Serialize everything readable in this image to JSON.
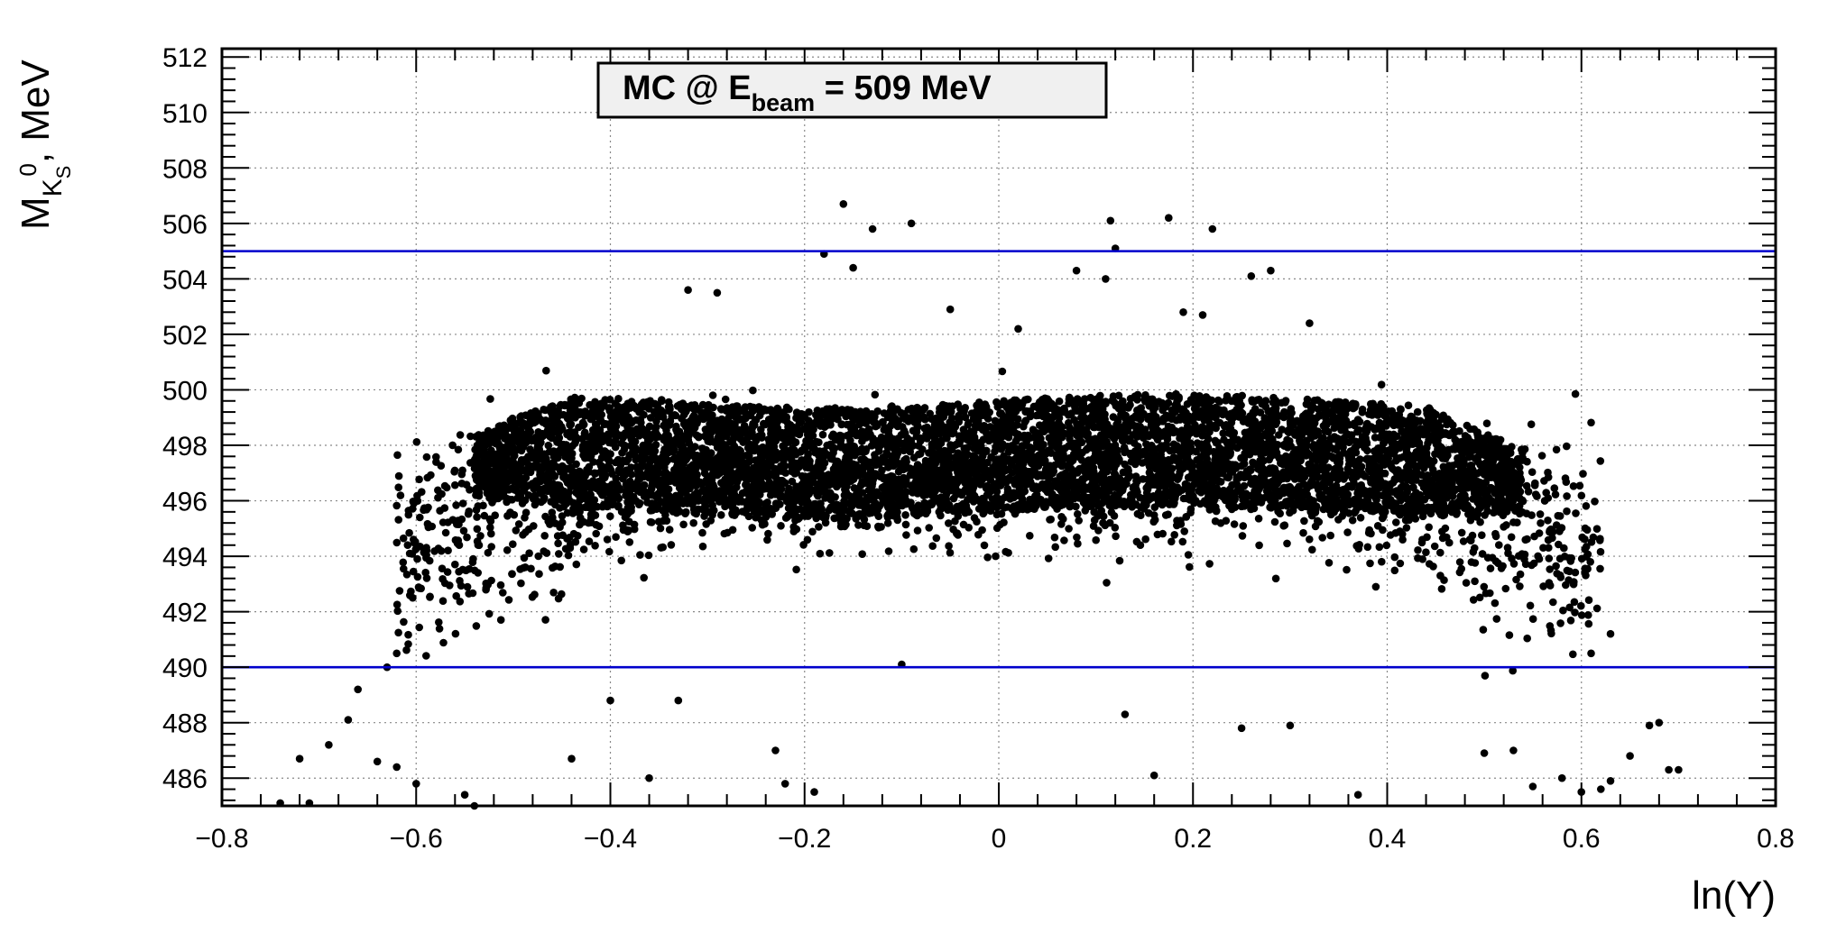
{
  "chart_data": {
    "type": "scatter",
    "title": "",
    "legend_box": {
      "prefix": "MC @ E",
      "subscript": "beam",
      "suffix": " = 509 MeV"
    },
    "xlabel": "ln(Y)",
    "ylabel": {
      "base": "M",
      "sub": "K",
      "subsub": "S",
      "sup": "0",
      "suffix": ", MeV"
    },
    "xlim": [
      -0.8,
      0.8
    ],
    "ylim": [
      485,
      512.3
    ],
    "x_ticks": [
      -0.8,
      -0.6,
      -0.4,
      -0.2,
      0,
      0.2,
      0.4,
      0.6,
      0.8
    ],
    "x_tick_labels": [
      "−0.8",
      "−0.6",
      "−0.4",
      "−0.2",
      "0",
      "0.2",
      "0.4",
      "0.6",
      "0.8"
    ],
    "y_ticks": [
      486,
      488,
      490,
      492,
      494,
      496,
      498,
      500,
      502,
      504,
      506,
      508,
      510,
      512
    ],
    "y_tick_labels": [
      "486",
      "488",
      "490",
      "492",
      "494",
      "496",
      "498",
      "500",
      "502",
      "504",
      "506",
      "508",
      "510",
      "512"
    ],
    "grid": true,
    "marker_color": "#000000",
    "cut_line_color": "#0000cc",
    "cut_lines": [
      490,
      505
    ],
    "band": {
      "x_range": [
        -0.54,
        0.54
      ],
      "center": 497.6,
      "half_width": 2.0,
      "n_points": 5200
    },
    "halo_points": 1900,
    "outlier_points": [
      [
        -0.16,
        506.7
      ],
      [
        -0.09,
        506.0
      ],
      [
        0.115,
        506.1
      ],
      [
        0.175,
        506.2
      ],
      [
        0.22,
        505.8
      ],
      [
        -0.13,
        505.8
      ],
      [
        0.12,
        505.1
      ],
      [
        -0.18,
        504.9
      ],
      [
        -0.15,
        504.4
      ],
      [
        0.11,
        504.0
      ],
      [
        0.08,
        504.3
      ],
      [
        0.26,
        504.1
      ],
      [
        0.28,
        504.3
      ],
      [
        -0.32,
        503.6
      ],
      [
        -0.29,
        503.5
      ],
      [
        0.32,
        502.4
      ],
      [
        0.19,
        502.8
      ],
      [
        0.21,
        502.7
      ],
      [
        -0.05,
        502.9
      ],
      [
        0.02,
        502.2
      ],
      [
        -0.74,
        485.1
      ],
      [
        -0.71,
        485.1
      ],
      [
        -0.72,
        486.7
      ],
      [
        -0.69,
        487.2
      ],
      [
        -0.67,
        488.1
      ],
      [
        -0.66,
        489.2
      ],
      [
        -0.64,
        486.6
      ],
      [
        -0.62,
        486.4
      ],
      [
        -0.6,
        485.8
      ],
      [
        -0.55,
        485.4
      ],
      [
        -0.54,
        485.0
      ],
      [
        -0.36,
        486.0
      ],
      [
        -0.22,
        485.8
      ],
      [
        -0.19,
        485.5
      ],
      [
        -0.23,
        487.0
      ],
      [
        -0.44,
        486.7
      ],
      [
        -0.4,
        488.8
      ],
      [
        -0.33,
        488.8
      ],
      [
        0.13,
        488.3
      ],
      [
        0.16,
        486.1
      ],
      [
        0.25,
        487.8
      ],
      [
        0.3,
        487.9
      ],
      [
        0.37,
        485.4
      ],
      [
        0.6,
        485.5
      ],
      [
        0.62,
        485.6
      ],
      [
        0.63,
        485.9
      ],
      [
        0.65,
        486.8
      ],
      [
        0.67,
        487.9
      ],
      [
        0.68,
        488.0
      ],
      [
        0.69,
        486.3
      ],
      [
        0.7,
        486.3
      ],
      [
        0.5,
        486.9
      ],
      [
        0.53,
        487.0
      ],
      [
        0.55,
        485.7
      ],
      [
        0.58,
        486.0
      ],
      [
        -0.63,
        490.0
      ],
      [
        0.63,
        491.2
      ],
      [
        0.61,
        490.5
      ],
      [
        -0.62,
        490.5
      ],
      [
        -0.1,
        490.1
      ]
    ]
  }
}
